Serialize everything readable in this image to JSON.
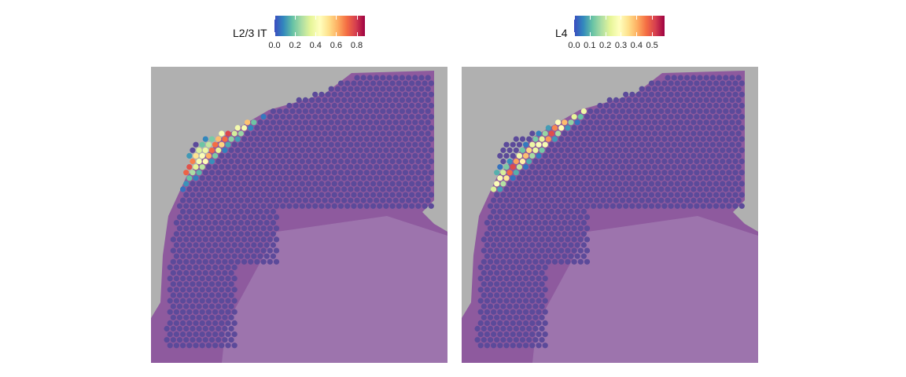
{
  "panels": [
    {
      "id": "l23",
      "legend_title": "L2/3 IT",
      "ticks": [
        "0.0",
        "0.2",
        "0.4",
        "0.6",
        "0.8"
      ],
      "tick_values": [
        0.0,
        0.2,
        0.4,
        0.6,
        0.8
      ],
      "scale_max": 0.88,
      "band_peak": 0.35,
      "band_width": 0.16,
      "peak_value": 0.85
    },
    {
      "id": "l4",
      "legend_title": "L4",
      "ticks": [
        "0.0",
        "0.1",
        "0.2",
        "0.3",
        "0.4",
        "0.5"
      ],
      "tick_values": [
        0.0,
        0.1,
        0.2,
        0.3,
        0.4,
        0.5
      ],
      "scale_max": 0.58,
      "band_peak": 0.52,
      "band_width": 0.12,
      "peak_value": 0.52
    }
  ],
  "colormap": {
    "name": "Spectral (reversed)",
    "stops": [
      "#3b4cc0",
      "#3288bd",
      "#66c2a5",
      "#abdda4",
      "#e6f598",
      "#ffffbf",
      "#fee08b",
      "#fdae61",
      "#f46d43",
      "#d53e4f",
      "#9e0142"
    ]
  },
  "colors": {
    "tissue": "#8e5a9e",
    "tissue_light": "#a98bb9",
    "background": "#b0b2b1",
    "low_spot": "#5b4a9a"
  }
}
